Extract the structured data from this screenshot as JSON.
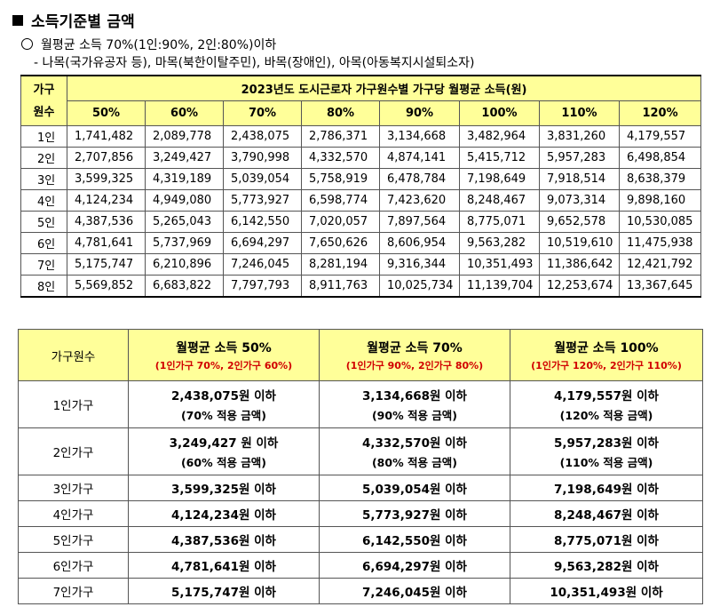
{
  "title": "소득기준별 금액",
  "line1": "월평균 소득 70%(1인:90%, 2인:80%)이하",
  "line2": "- 나목(국가유공자 등), 마목(북한이탈주민), 바목(장애인), 아목(아동복지시설퇴소자)",
  "table1": {
    "header_household": "가구\n원수",
    "header_household_a": "가구",
    "header_household_b": "원수",
    "header_title": "2023년도 도시근로자 가구원수별 가구당 월평균 소득(원)",
    "percents": [
      "50%",
      "60%",
      "70%",
      "80%",
      "90%",
      "100%",
      "110%",
      "120%"
    ],
    "rows": [
      {
        "label": "1인",
        "values": [
          "1,741,482",
          "2,089,778",
          "2,438,075",
          "2,786,371",
          "3,134,668",
          "3,482,964",
          "3,831,260",
          "4,179,557"
        ]
      },
      {
        "label": "2인",
        "values": [
          "2,707,856",
          "3,249,427",
          "3,790,998",
          "4,332,570",
          "4,874,141",
          "5,415,712",
          "5,957,283",
          "6,498,854"
        ]
      },
      {
        "label": "3인",
        "values": [
          "3,599,325",
          "4,319,189",
          "5,039,054",
          "5,758,919",
          "6,478,784",
          "7,198,649",
          "7,918,514",
          "8,638,379"
        ]
      },
      {
        "label": "4인",
        "values": [
          "4,124,234",
          "4,949,080",
          "5,773,927",
          "6,598,774",
          "7,423,620",
          "8,248,467",
          "9,073,314",
          "9,898,160"
        ]
      },
      {
        "label": "5인",
        "values": [
          "4,387,536",
          "5,265,043",
          "6,142,550",
          "7,020,057",
          "7,897,564",
          "8,775,071",
          "9,652,578",
          "10,530,085"
        ]
      },
      {
        "label": "6인",
        "values": [
          "4,781,641",
          "5,737,969",
          "6,694,297",
          "7,650,626",
          "8,606,954",
          "9,563,282",
          "10,519,610",
          "11,475,938"
        ]
      },
      {
        "label": "7인",
        "values": [
          "5,175,747",
          "6,210,896",
          "7,246,045",
          "8,281,194",
          "9,316,344",
          "10,351,493",
          "11,386,642",
          "12,421,792"
        ]
      },
      {
        "label": "8인",
        "values": [
          "5,569,852",
          "6,683,822",
          "7,797,793",
          "8,911,763",
          "10,025,734",
          "11,139,704",
          "12,253,674",
          "13,367,645"
        ]
      }
    ]
  },
  "table2": {
    "header_first": "가구원수",
    "headers": [
      {
        "main": "월평균 소득 50%",
        "sub": "(1인가구 70%, 2인가구 60%)"
      },
      {
        "main": "월평균 소득 70%",
        "sub": "(1인가구 90%, 2인가구 80%)"
      },
      {
        "main": "월평균 소득 100%",
        "sub": "(1인가구 120%, 2인가구 110%)"
      }
    ],
    "rows": [
      {
        "label": "1인가구",
        "cells": [
          {
            "amount": "2,438,075원 이하",
            "note": "(70% 적용 금액)"
          },
          {
            "amount": "3,134,668원 이하",
            "note": "(90% 적용 금액)"
          },
          {
            "amount": "4,179,557원 이하",
            "note": "(120% 적용 금액)"
          }
        ]
      },
      {
        "label": "2인가구",
        "cells": [
          {
            "amount": "3,249,427 원 이하",
            "note": "(60% 적용 금액)"
          },
          {
            "amount": "4,332,570원 이하",
            "note": "(80% 적용 금액)"
          },
          {
            "amount": "5,957,283원 이하",
            "note": "(110% 적용 금액)"
          }
        ]
      },
      {
        "label": "3인가구",
        "cells": [
          {
            "amount": "3,599,325원 이하"
          },
          {
            "amount": "5,039,054원 이하"
          },
          {
            "amount": "7,198,649원 이하"
          }
        ]
      },
      {
        "label": "4인가구",
        "cells": [
          {
            "amount": "4,124,234원 이하"
          },
          {
            "amount": "5,773,927원 이하"
          },
          {
            "amount": "8,248,467원 이하"
          }
        ]
      },
      {
        "label": "5인가구",
        "cells": [
          {
            "amount": "4,387,536원 이하"
          },
          {
            "amount": "6,142,550원 이하"
          },
          {
            "amount": "8,775,071원 이하"
          }
        ]
      },
      {
        "label": "6인가구",
        "cells": [
          {
            "amount": "4,781,641원 이하"
          },
          {
            "amount": "6,694,297원 이하"
          },
          {
            "amount": "9,563,282원 이하"
          }
        ]
      },
      {
        "label": "7인가구",
        "cells": [
          {
            "amount": "5,175,747원 이하"
          },
          {
            "amount": "7,246,045원 이하"
          },
          {
            "amount": "10,351,493원 이하"
          }
        ]
      }
    ]
  }
}
